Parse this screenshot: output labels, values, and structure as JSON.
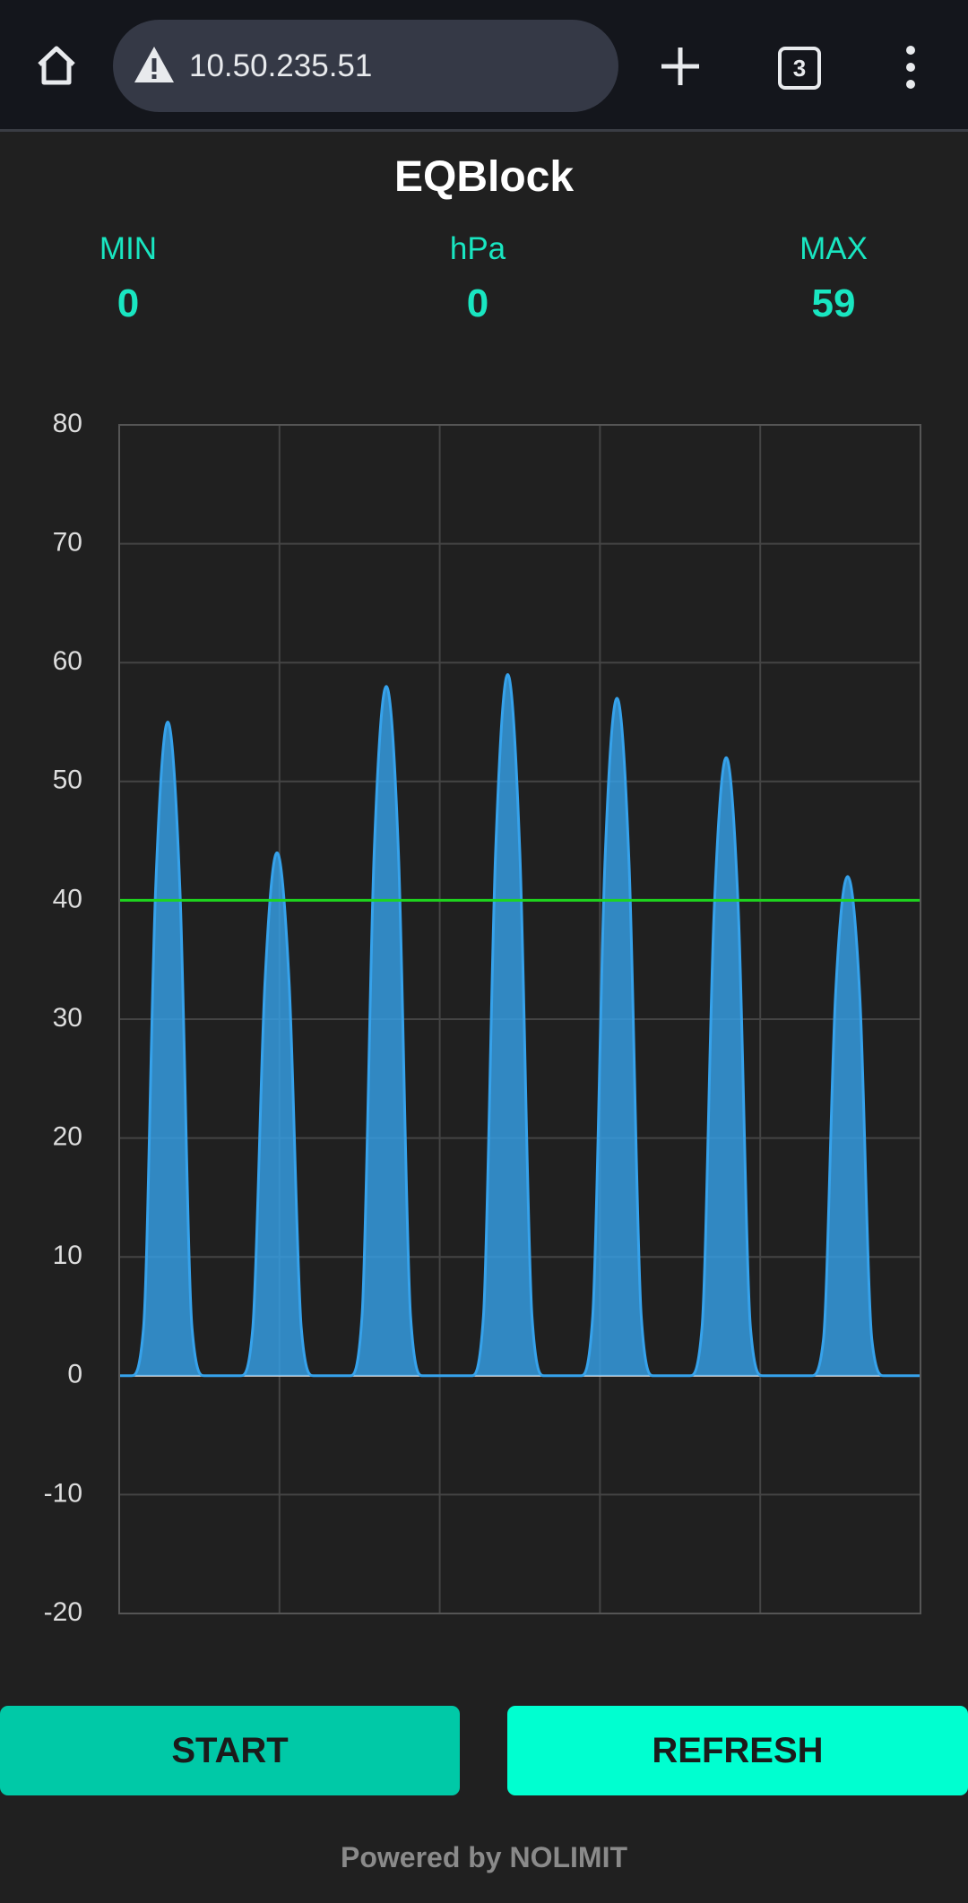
{
  "browser": {
    "url": "10.50.235.51",
    "tab_count": "3"
  },
  "header": {
    "title": "EQBlock"
  },
  "stats": [
    {
      "label": "MIN",
      "value": 0
    },
    {
      "label": "hPa",
      "value": 0
    },
    {
      "label": "MAX",
      "value": 59
    }
  ],
  "chart_data": {
    "type": "area",
    "color": "#36a2eb",
    "values": [
      0,
      0,
      4,
      41,
      55,
      41,
      4,
      0,
      0,
      0,
      0,
      4,
      33,
      44,
      33,
      4,
      0,
      0,
      0,
      0,
      5,
      44,
      58,
      44,
      5,
      0,
      0,
      0,
      0,
      0,
      5,
      44,
      59,
      44,
      5,
      0,
      0,
      0,
      0,
      5,
      43,
      57,
      43,
      5,
      0,
      0,
      0,
      0,
      4,
      39,
      52,
      39,
      4,
      0,
      0,
      0,
      0,
      0,
      3,
      32,
      42,
      32,
      3,
      0,
      0,
      0,
      0
    ],
    "ylim": [
      -20,
      80
    ],
    "yticks": [
      -20,
      -10,
      0,
      10,
      20,
      30,
      40,
      50,
      60,
      70,
      80
    ],
    "grid": true,
    "reference_line": {
      "value": 40,
      "color": "#1ed41e"
    }
  },
  "buttons": [
    "START",
    "REFRESH"
  ],
  "footer": "Powered by NOLIMIT"
}
